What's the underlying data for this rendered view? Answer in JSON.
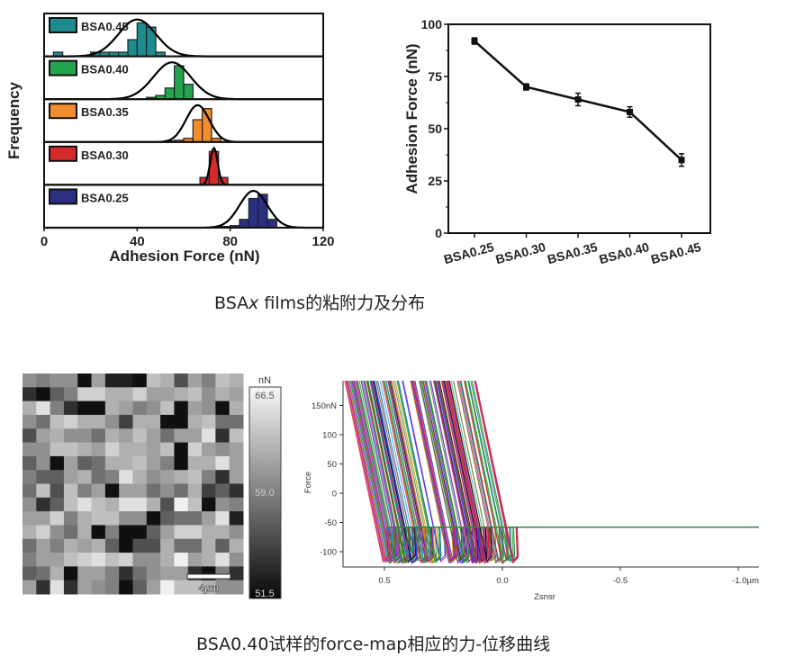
{
  "captions": {
    "top_prefix": "BSA",
    "top_italic": "x",
    "top_suffix": " films的粘附力及分布",
    "bottom": "BSA0.40试样的force-map相应的力-位移曲线"
  },
  "chart_data": [
    {
      "type": "bar",
      "subtype": "stacked-histograms-with-gaussian-fit",
      "xlabel": "Adhesion Force (nN)",
      "ylabel": "Frequency",
      "xlim": [
        0,
        120
      ],
      "xticks": [
        "0",
        "40",
        "80",
        "120"
      ],
      "bin_width": 4,
      "series": [
        {
          "name": "BSA0.45",
          "color": "#1e8c8e",
          "mean": 40,
          "sd": 8,
          "bins": [
            [
              6,
              1
            ],
            [
              22,
              1
            ],
            [
              26,
              1
            ],
            [
              30,
              1
            ],
            [
              34,
              1
            ],
            [
              38,
              4
            ],
            [
              42,
              8
            ],
            [
              46,
              7
            ],
            [
              50,
              1
            ]
          ]
        },
        {
          "name": "BSA0.40",
          "color": "#24a24c",
          "mean": 55,
          "sd": 8,
          "bins": [
            [
              46,
              0.5
            ],
            [
              50,
              1
            ],
            [
              54,
              3
            ],
            [
              58,
              9
            ],
            [
              62,
              4
            ]
          ]
        },
        {
          "name": "BSA0.35",
          "color": "#f28c2c",
          "mean": 66,
          "sd": 5,
          "bins": [
            [
              54,
              0.3
            ],
            [
              58,
              0.5
            ],
            [
              62,
              1
            ],
            [
              66,
              6
            ],
            [
              70,
              9
            ],
            [
              74,
              1
            ]
          ]
        },
        {
          "name": "BSA0.30",
          "color": "#d42a2c",
          "mean": 73,
          "sd": 1.6,
          "bins": [
            [
              69,
              2
            ],
            [
              73,
              9
            ],
            [
              77,
              2
            ]
          ]
        },
        {
          "name": "BSA0.25",
          "color": "#2a2f82",
          "mean": 90,
          "sd": 6,
          "bins": [
            [
              78,
              0.3
            ],
            [
              82,
              0.5
            ],
            [
              86,
              2
            ],
            [
              90,
              7
            ],
            [
              94,
              8
            ],
            [
              98,
              2
            ]
          ]
        }
      ]
    },
    {
      "type": "line",
      "xlabel": "",
      "ylabel": "Adhesion Force (nN)",
      "ylim": [
        0,
        100
      ],
      "yticks": [
        "0",
        "25",
        "50",
        "75",
        "100"
      ],
      "categories": [
        "BSA0.25",
        "BSA0.30",
        "BSA0.35",
        "BSA0.40",
        "BSA0.45"
      ],
      "values": [
        92,
        70,
        64,
        58,
        35
      ],
      "errors": [
        1.5,
        1.5,
        3,
        2.5,
        3
      ]
    },
    {
      "type": "heatmap",
      "unit": "nN",
      "colorbar_ticks": [
        "66.5",
        "59.0",
        "51.5"
      ],
      "range": [
        51.5,
        66.5
      ],
      "scalebar_label": "4μm",
      "values": [
        [
          60,
          59,
          60,
          60,
          52,
          61,
          53,
          53,
          52,
          63,
          62,
          56,
          61,
          59,
          63,
          62
        ],
        [
          54,
          52,
          57,
          59,
          64,
          64,
          62,
          62,
          64,
          61,
          61,
          62,
          63,
          60,
          62,
          61
        ],
        [
          62,
          65,
          59,
          54,
          52,
          52,
          62,
          61,
          59,
          60,
          63,
          52,
          61,
          60,
          52,
          62
        ],
        [
          60,
          58,
          63,
          64,
          62,
          62,
          60,
          55,
          62,
          62,
          52,
          52,
          62,
          63,
          58,
          58
        ],
        [
          56,
          61,
          62,
          60,
          60,
          58,
          62,
          61,
          63,
          61,
          58,
          61,
          61,
          65,
          54,
          63
        ],
        [
          60,
          60,
          63,
          63,
          62,
          61,
          64,
          62,
          62,
          61,
          63,
          52,
          64,
          61,
          60,
          61
        ],
        [
          57,
          60,
          52,
          61,
          57,
          58,
          62,
          62,
          63,
          61,
          59,
          52,
          62,
          62,
          65,
          61
        ],
        [
          59,
          57,
          57,
          61,
          62,
          58,
          59,
          65,
          62,
          60,
          61,
          62,
          63,
          59,
          54,
          61
        ],
        [
          58,
          63,
          56,
          63,
          59,
          61,
          52,
          61,
          61,
          58,
          60,
          58,
          62,
          55,
          57,
          54
        ],
        [
          60,
          54,
          57,
          63,
          65,
          63,
          62,
          65,
          65,
          62,
          56,
          66,
          63,
          52,
          60,
          59
        ],
        [
          61,
          61,
          64,
          59,
          62,
          63,
          63,
          60,
          60,
          52,
          57,
          58,
          58,
          61,
          65,
          53
        ],
        [
          62,
          64,
          60,
          58,
          62,
          52,
          59,
          52,
          52,
          57,
          61,
          64,
          64,
          62,
          62,
          60
        ],
        [
          58,
          61,
          59,
          62,
          61,
          62,
          57,
          52,
          56,
          56,
          62,
          58,
          58,
          62,
          57,
          62
        ],
        [
          59,
          61,
          61,
          63,
          64,
          65,
          63,
          64,
          60,
          60,
          62,
          66,
          61,
          62,
          65,
          60
        ],
        [
          57,
          58,
          62,
          52,
          61,
          61,
          59,
          54,
          58,
          60,
          61,
          61,
          54,
          52,
          59,
          54
        ],
        [
          61,
          54,
          65,
          54,
          61,
          60,
          59,
          52,
          57,
          61,
          66,
          63,
          63,
          62,
          60,
          60
        ]
      ]
    },
    {
      "type": "line",
      "subtype": "force-distance-curves",
      "xlabel": "Zsnsr",
      "ylabel": "Force",
      "xlim": [
        0.67,
        -1.1
      ],
      "ylim": [
        -125,
        193
      ],
      "xticks": [
        "0.5",
        "0.0",
        "-0.5",
        "-1.0µm"
      ],
      "xtick_values": [
        0.5,
        0,
        -0.5,
        -1.0
      ],
      "yticks": [
        "150nN",
        "100",
        "50",
        "0",
        "-50",
        "-100"
      ],
      "ytick_values": [
        150,
        100,
        50,
        0,
        -50,
        -100
      ],
      "curve_count": 160,
      "baseline_force": -58,
      "min_force": -120,
      "snap_off_range": [
        -0.04,
        0.52
      ],
      "palette": [
        "#1f3fd8",
        "#d81f1f",
        "#18a018",
        "#000000",
        "#9a1fc8",
        "#18b0b0",
        "#e08a00",
        "#d81fa0",
        "#606000",
        "#2a8a5a"
      ]
    }
  ]
}
